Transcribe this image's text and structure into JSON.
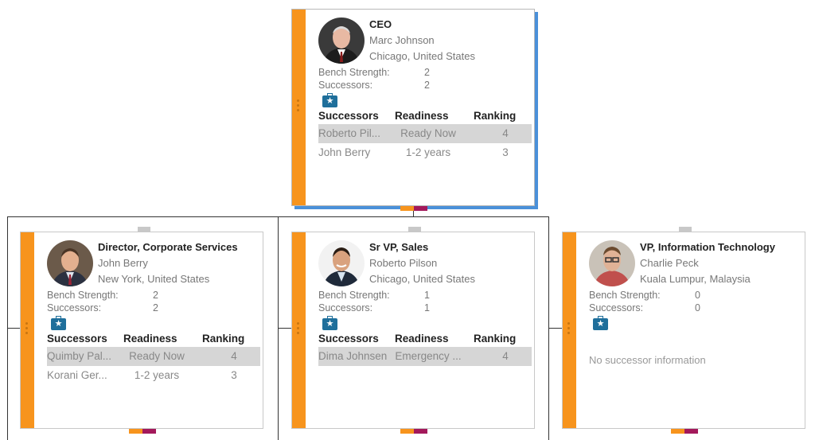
{
  "labels": {
    "bench_strength": "Bench Strength:",
    "successors": "Successors:",
    "col_successors": "Successors",
    "col_readiness": "Readiness",
    "col_ranking": "Ranking",
    "no_successor": "No successor information"
  },
  "colors": {
    "stripe": "#f7941d",
    "accent_orange": "#f7941d",
    "accent_purple": "#a3195b",
    "selection": "#4a90d9",
    "briefcase": "#1f6f9b"
  },
  "cards": {
    "ceo": {
      "title": "CEO",
      "name": "Marc Johnson",
      "location": "Chicago, United States",
      "bench_strength": "2",
      "successors_count": "2",
      "icon": "briefcase-star-icon",
      "rows": [
        {
          "successor": "Roberto Pil...",
          "readiness": "Ready Now",
          "ranking": "4"
        },
        {
          "successor": "John Berry",
          "readiness": "1-2 years",
          "ranking": "3"
        }
      ]
    },
    "director": {
      "title": "Director, Corporate Services",
      "name": "John Berry",
      "location": "New York, United States",
      "bench_strength": "2",
      "successors_count": "2",
      "icon": "briefcase-star-icon",
      "rows": [
        {
          "successor": "Quimby Pal...",
          "readiness": "Ready Now",
          "ranking": "4"
        },
        {
          "successor": "Korani Ger...",
          "readiness": "1-2 years",
          "ranking": "3"
        }
      ]
    },
    "srvp": {
      "title": "Sr VP, Sales",
      "name": "Roberto Pilson",
      "location": "Chicago, United States",
      "bench_strength": "1",
      "successors_count": "1",
      "icon": "briefcase-star-icon",
      "rows": [
        {
          "successor": "Dima Johnsen",
          "readiness": "Emergency ...",
          "ranking": "4"
        }
      ]
    },
    "vpit": {
      "title": "VP, Information Technology",
      "name": "Charlie Peck",
      "location": "Kuala Lumpur, Malaysia",
      "bench_strength": "0",
      "successors_count": "0",
      "icon": "briefcase-star-icon"
    }
  }
}
